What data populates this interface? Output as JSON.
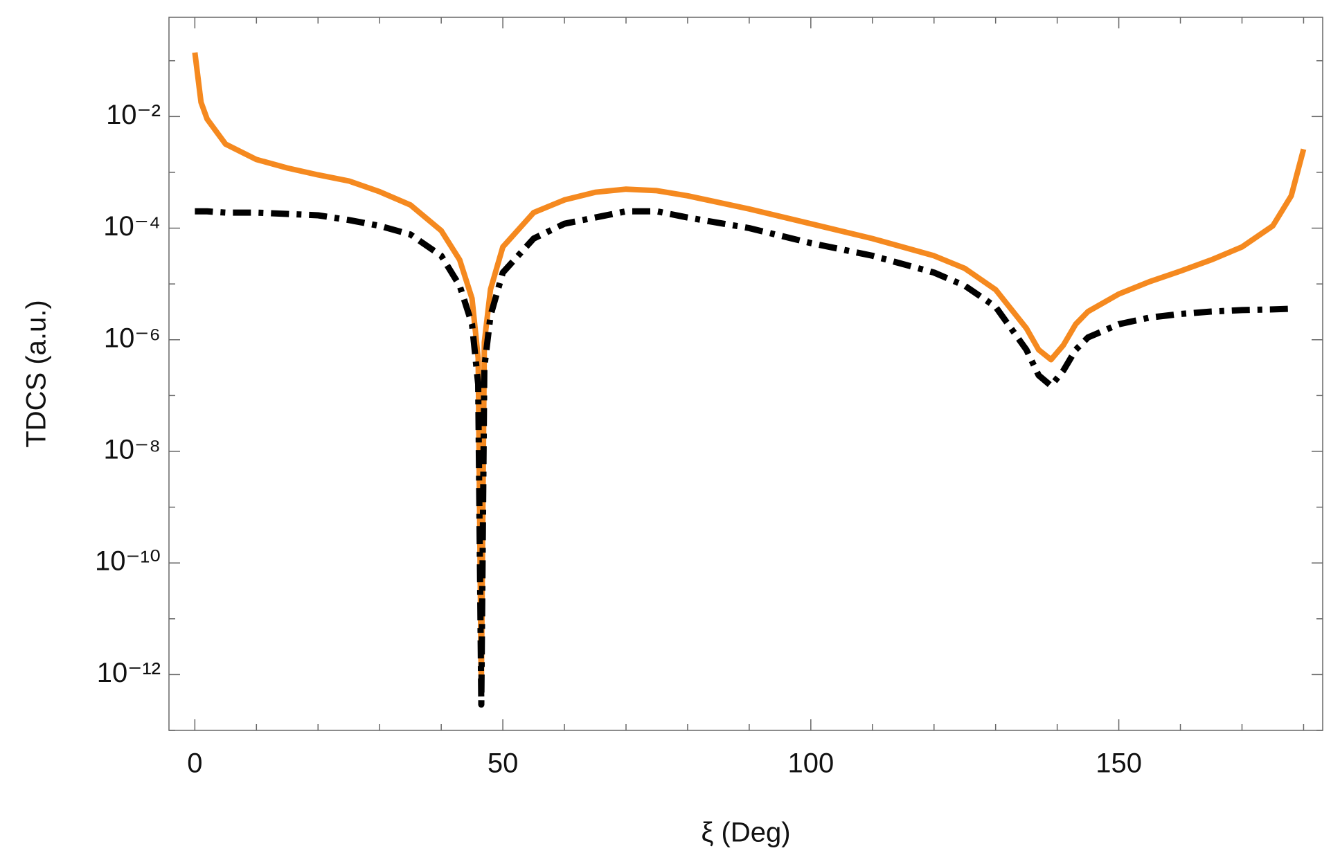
{
  "chart_data": {
    "type": "line",
    "xlabel": "ξ (Deg)",
    "ylabel": "TDCS (a.u.)",
    "log_y": true,
    "xlim": [
      -4.2,
      183.1
    ],
    "ylim": [
      1e-13,
      0.6
    ],
    "xticks": [
      0,
      50,
      100,
      150
    ],
    "xminorticks": [
      10,
      20,
      30,
      40,
      60,
      70,
      80,
      90,
      110,
      120,
      130,
      140,
      160,
      170,
      180
    ],
    "yticks": [
      {
        "value": 0.01,
        "label": "10⁻²"
      },
      {
        "value": 0.0001,
        "label": "10⁻⁴"
      },
      {
        "value": 1e-06,
        "label": "10⁻⁶"
      },
      {
        "value": 1e-08,
        "label": "10⁻⁸"
      },
      {
        "value": 1e-10,
        "label": "10⁻¹⁰"
      },
      {
        "value": 1e-12,
        "label": "10⁻¹²"
      }
    ],
    "yminorticks": [
      0.1,
      0.001,
      1e-05,
      1e-07,
      1e-09,
      1e-11,
      1e-13
    ],
    "x": [
      0,
      1,
      2,
      5,
      10,
      15,
      20,
      25,
      30,
      35,
      40,
      43,
      45,
      46,
      46.5,
      47,
      48,
      50,
      55,
      60,
      65,
      70,
      75,
      80,
      90,
      100,
      110,
      120,
      125,
      130,
      135,
      137,
      139,
      141,
      143,
      145,
      150,
      155,
      160,
      165,
      170,
      175,
      178,
      180
    ],
    "series": [
      {
        "color": "#f5891f",
        "dash": "solid",
        "values": [
          0.14,
          0.018,
          0.009,
          0.0032,
          0.0017,
          0.0012,
          0.0009,
          0.0007,
          0.00045,
          0.00026,
          9e-05,
          2.7e-05,
          5.5e-06,
          4.7e-07,
          5e-13,
          9e-07,
          8e-06,
          4.6e-05,
          0.00019,
          0.00032,
          0.00044,
          0.0005,
          0.00047,
          0.00038,
          0.00022,
          0.00012,
          6.5e-05,
          3.2e-05,
          1.9e-05,
          7.9e-06,
          1.6e-06,
          6.6e-07,
          4.4e-07,
          8e-07,
          1.9e-06,
          3.2e-06,
          6.6e-06,
          1.1e-05,
          1.7e-05,
          2.7e-05,
          4.6e-05,
          0.00011,
          0.00038,
          0.0026
        ]
      },
      {
        "color": "#000000",
        "dash": "dashdot",
        "values": [
          0.0002,
          0.0002,
          0.0002,
          0.00019,
          0.00019,
          0.00018,
          0.00017,
          0.00014,
          0.00011,
          7.7e-05,
          3.2e-05,
          9.3e-06,
          1.9e-06,
          1.6e-07,
          2.9e-13,
          3.2e-07,
          2.7e-06,
          1.6e-05,
          6.5e-05,
          0.00012,
          0.000155,
          0.0002,
          0.0002,
          0.000155,
          0.0001,
          5.4e-05,
          3.2e-05,
          1.6e-05,
          9.3e-06,
          3.9e-06,
          6.6e-07,
          2.3e-07,
          1.5e-07,
          2.8e-07,
          6.6e-07,
          1.1e-06,
          1.9e-06,
          2.5e-06,
          2.9e-06,
          3.2e-06,
          3.4e-06,
          3.5e-06,
          3.6e-06,
          null
        ]
      }
    ]
  }
}
